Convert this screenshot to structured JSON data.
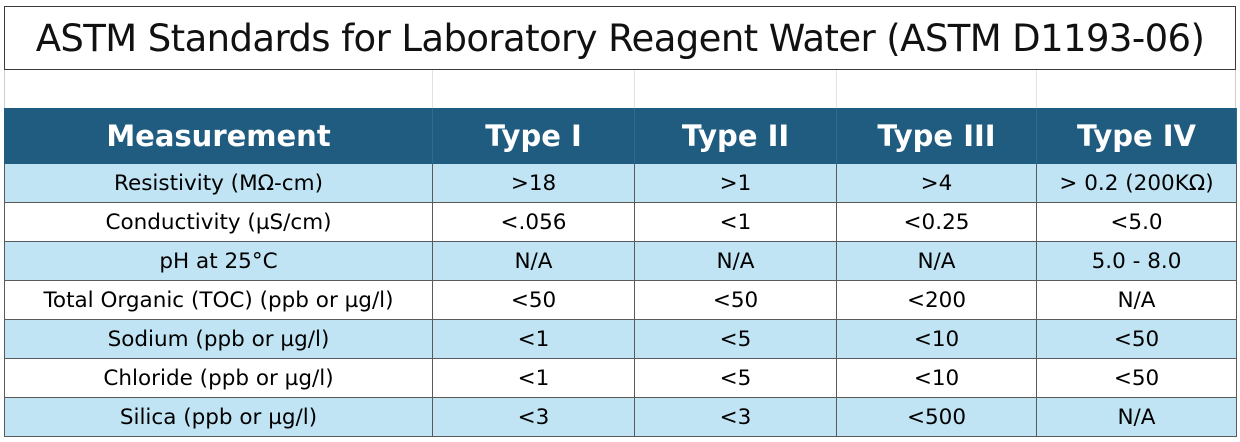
{
  "title": "ASTM Standards for Laboratory Reagent Water (ASTM D1193-06)",
  "table": {
    "headers": [
      "Measurement",
      "Type I",
      "Type II",
      "Type III",
      "Type IV"
    ],
    "rows": [
      [
        "Resistivity (MΩ-cm)",
        ">18",
        ">1",
        ">4",
        "> 0.2 (200KΩ)"
      ],
      [
        "Conductivity (µS/cm)",
        "<.056",
        "<1",
        "<0.25",
        "<5.0"
      ],
      [
        "pH at 25°C",
        "N/A",
        "N/A",
        "N/A",
        "5.0 - 8.0"
      ],
      [
        "Total Organic (TOC) (ppb or µg/l)",
        "<50",
        "<50",
        "<200",
        "N/A"
      ],
      [
        "Sodium (ppb or µg/l)",
        "<1",
        "<5",
        "<10",
        "<50"
      ],
      [
        "Chloride (ppb or µg/l)",
        "<1",
        "<5",
        "<10",
        "<50"
      ],
      [
        "Silica (ppb or µg/l)",
        "<3",
        "<3",
        "<500",
        "N/A"
      ]
    ]
  },
  "colors": {
    "header_background": "#1f5c80",
    "header_text": "#ffffff",
    "band_row": "#c0e4f4",
    "plain_row": "#ffffff"
  }
}
